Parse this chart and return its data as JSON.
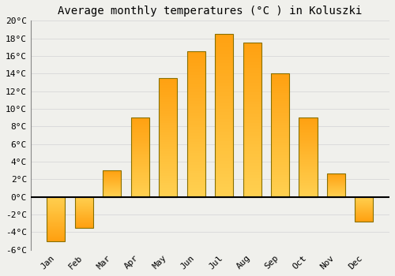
{
  "months": [
    "Jan",
    "Feb",
    "Mar",
    "Apr",
    "May",
    "Jun",
    "Jul",
    "Aug",
    "Sep",
    "Oct",
    "Nov",
    "Dec"
  ],
  "values": [
    -5.0,
    -3.5,
    3.0,
    9.0,
    13.5,
    16.5,
    18.5,
    17.5,
    14.0,
    9.0,
    2.7,
    -2.8
  ],
  "title": "Average monthly temperatures (°C ) in Koluszki",
  "bar_color_light": "#FFD050",
  "bar_color_dark": "#FFA010",
  "bar_edge_color": "#887000",
  "ylim": [
    -6,
    20
  ],
  "yticks": [
    -6,
    -4,
    -2,
    0,
    2,
    4,
    6,
    8,
    10,
    12,
    14,
    16,
    18,
    20
  ],
  "background_color": "#F0F0EC",
  "grid_color": "#D8D8D8",
  "title_fontsize": 10,
  "tick_fontsize": 8
}
